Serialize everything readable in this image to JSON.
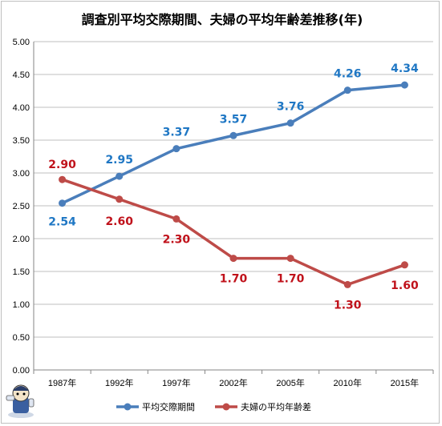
{
  "chart_data": {
    "type": "line",
    "title": "調査別平均交際期間、夫婦の平均年齢差推移(年)",
    "categories": [
      "1987年",
      "1992年",
      "1997年",
      "2002年",
      "2005年",
      "2010年",
      "2015年"
    ],
    "ylim": [
      0,
      5
    ],
    "yticks": [
      "0.00",
      "0.50",
      "1.00",
      "1.50",
      "2.00",
      "2.50",
      "3.00",
      "3.50",
      "4.00",
      "4.50",
      "5.00"
    ],
    "grid": true,
    "legend_position": "bottom",
    "series": [
      {
        "name": "平均交際期間",
        "color": "#4a7ebb",
        "label_color": "#1f77c4",
        "values": [
          2.54,
          2.95,
          3.37,
          3.57,
          3.76,
          4.26,
          4.34
        ],
        "labels": [
          "2.54",
          "2.95",
          "3.37",
          "3.57",
          "3.76",
          "4.26",
          "4.34"
        ]
      },
      {
        "name": "夫婦の平均年齢差",
        "color": "#be4b48",
        "label_color": "#c0121b",
        "values": [
          2.9,
          2.6,
          2.3,
          1.7,
          1.7,
          1.3,
          1.6
        ],
        "labels": [
          "2.90",
          "2.60",
          "2.30",
          "1.70",
          "1.70",
          "1.30",
          "1.60"
        ]
      }
    ]
  },
  "mascot_icon": "mascot-character-icon"
}
